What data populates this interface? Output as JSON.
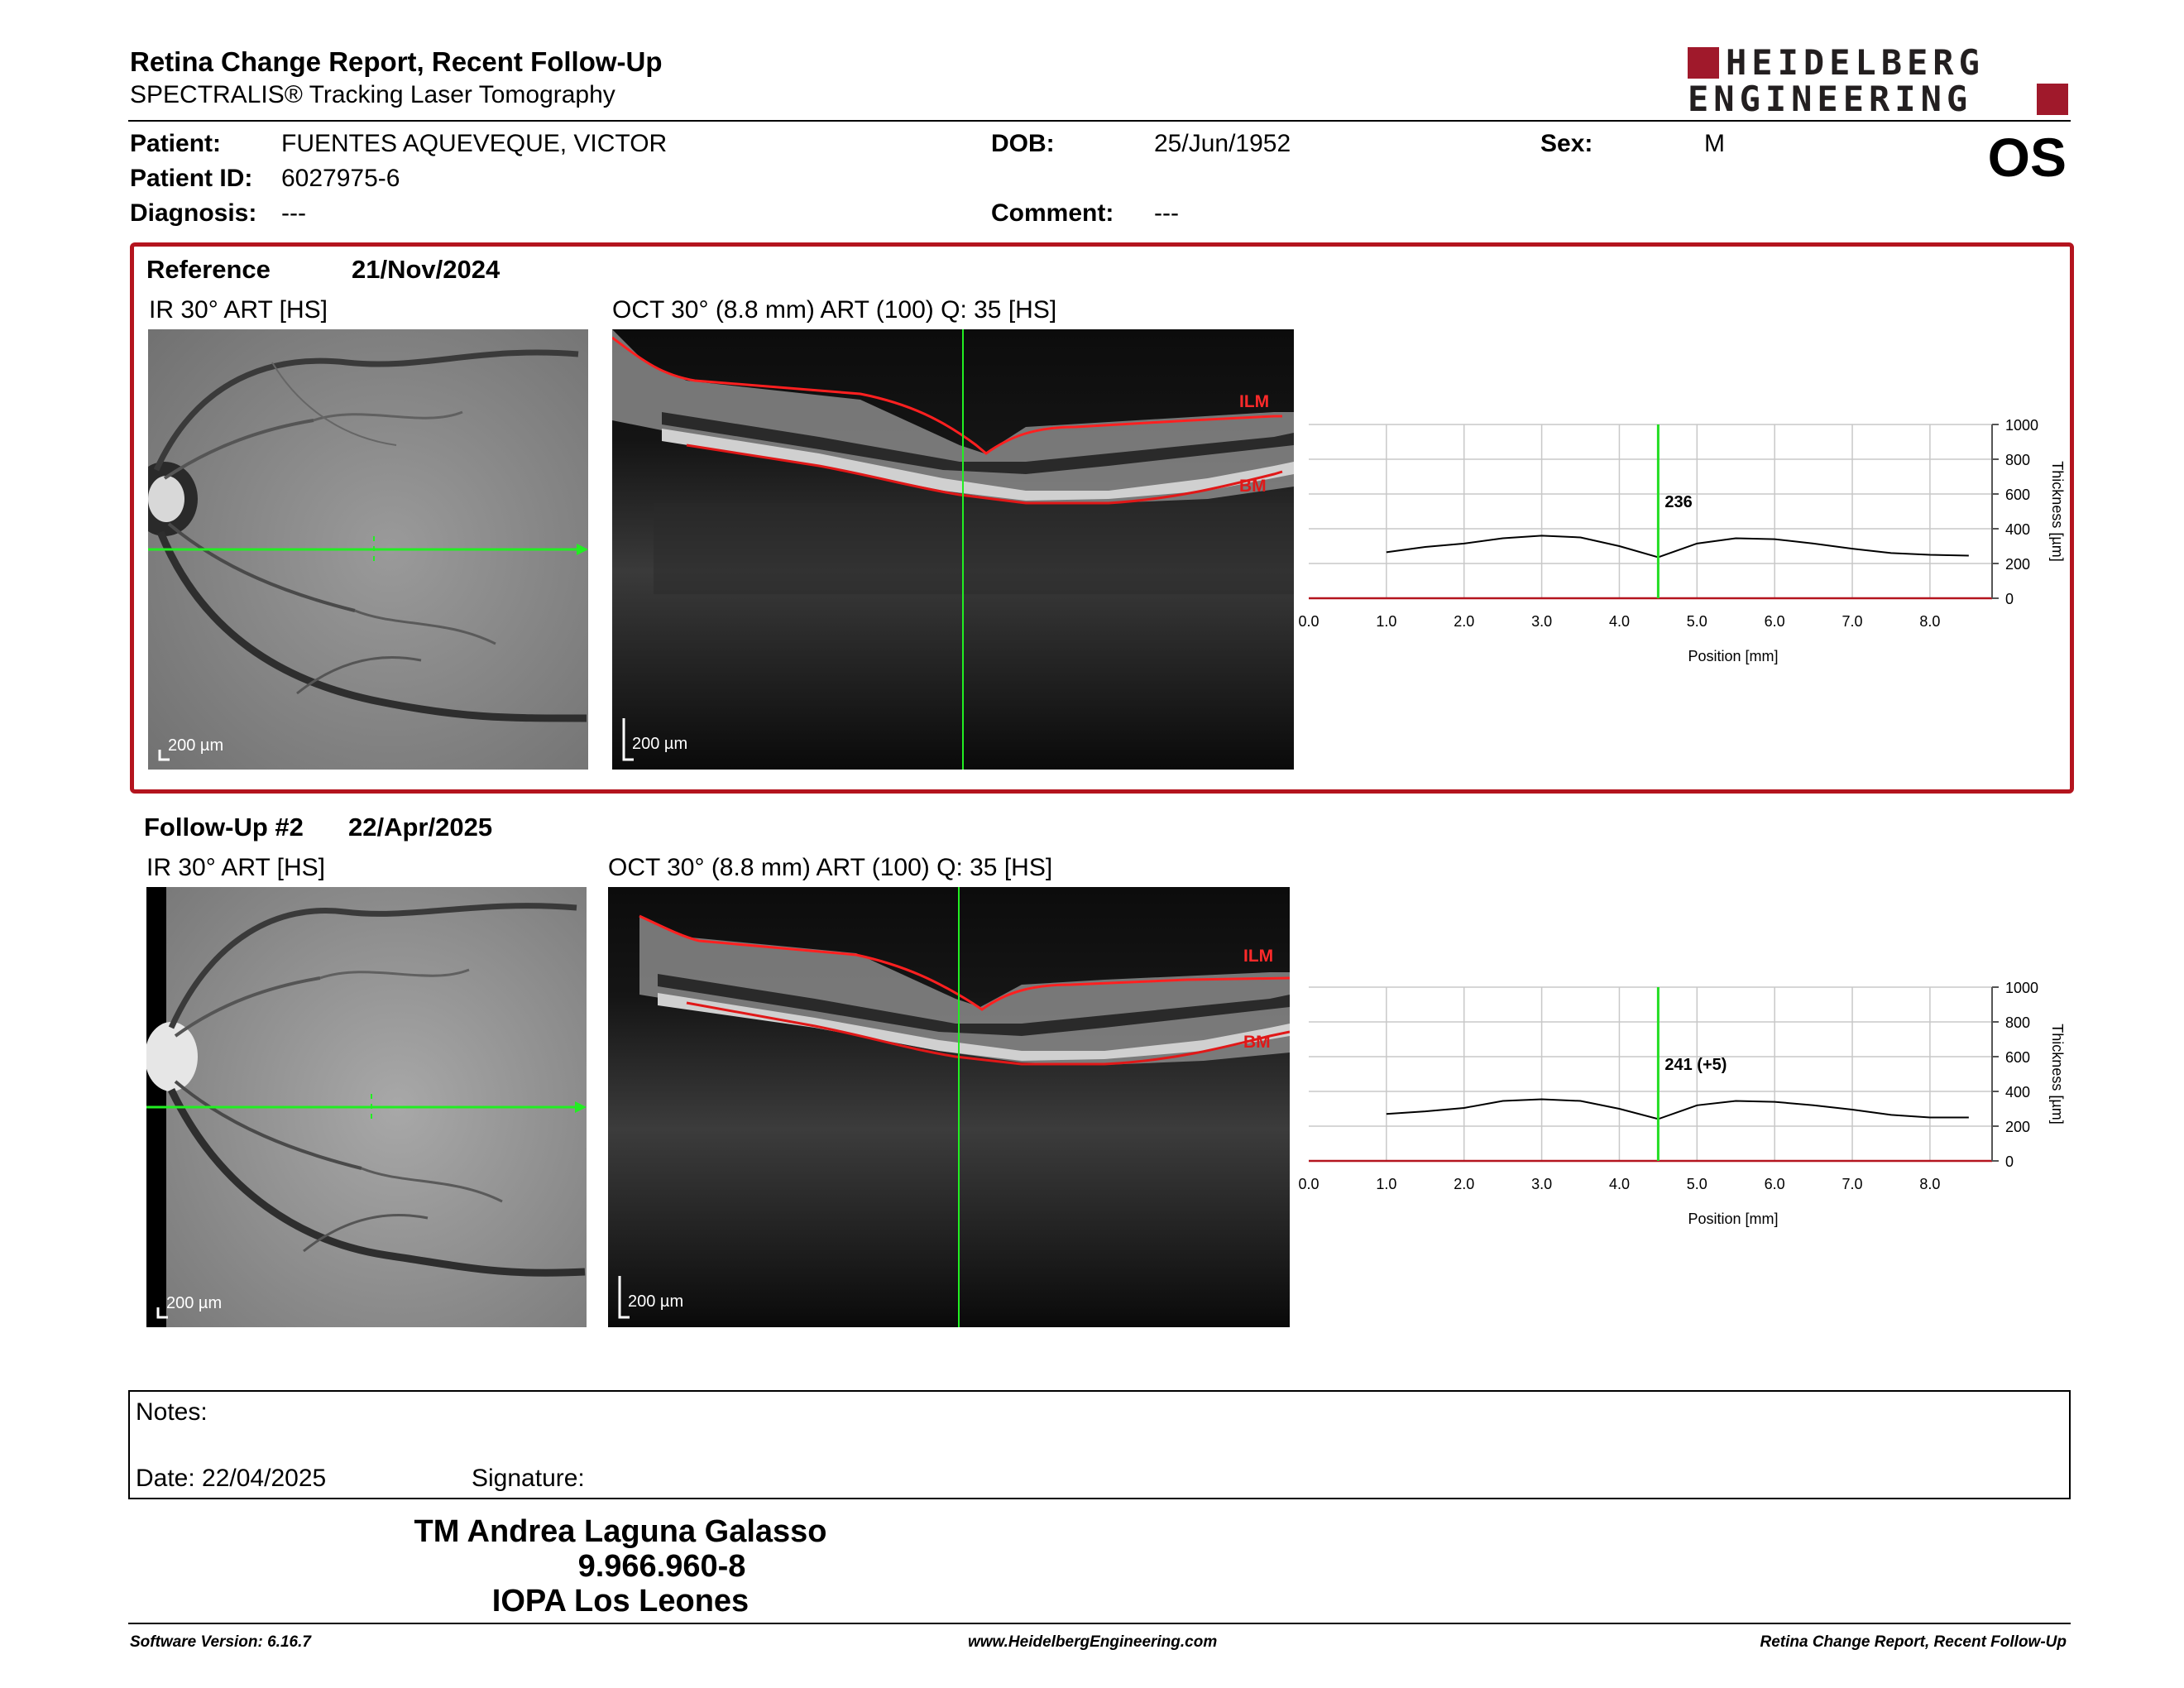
{
  "header": {
    "title": "Retina Change Report, Recent Follow-Up",
    "subtitle": "SPECTRALIS® Tracking Laser Tomography",
    "logo_line1": "HEIDELBERG",
    "logo_line2": "ENGINEERING",
    "brand_color": "#a0192b",
    "eye": "OS"
  },
  "patient": {
    "patient_label": "Patient:",
    "patient_value": "FUENTES AQUEVEQUE, VICTOR",
    "id_label": "Patient ID:",
    "id_value": "6027975-6",
    "diagnosis_label": "Diagnosis:",
    "diagnosis_value": "---",
    "dob_label": "DOB:",
    "dob_value": "25/Jun/1952",
    "comment_label": "Comment:",
    "comment_value": "---",
    "sex_label": "Sex:",
    "sex_value": "M"
  },
  "exams": [
    {
      "name": "Reference",
      "date": "21/Nov/2024",
      "ir_label": "IR 30° ART [HS]",
      "oct_label": "OCT 30° (8.8 mm) ART (100) Q: 35 [HS]",
      "scale": "200 µm",
      "ilm": "ILM",
      "bm": "BM",
      "thickness_label": "236",
      "highlight_color": "#b4141e"
    },
    {
      "name": "Follow-Up #2",
      "date": "22/Apr/2025",
      "ir_label": "IR 30° ART [HS]",
      "oct_label": "OCT 30° (8.8 mm) ART (100) Q: 35 [HS]",
      "scale": "200 µm",
      "ilm": "ILM",
      "bm": "BM",
      "thickness_label": "241 (+5)"
    }
  ],
  "chart_data": [
    {
      "type": "line",
      "xlabel": "Position [mm]",
      "ylabel": "Thickness [µm]",
      "xlim": [
        0,
        8.8
      ],
      "ylim": [
        0,
        1000
      ],
      "x_ticks": [
        "0.0",
        "1.0",
        "2.0",
        "3.0",
        "4.0",
        "5.0",
        "6.0",
        "7.0",
        "8.0"
      ],
      "y_ticks": [
        "0",
        "200",
        "400",
        "600",
        "800",
        "1000"
      ],
      "grid": true,
      "marker_x": 4.5,
      "marker_label": "236",
      "series": [
        {
          "x": [
            1.0,
            1.5,
            2.0,
            2.5,
            3.0,
            3.5,
            4.0,
            4.5,
            5.0,
            5.5,
            6.0,
            6.5,
            7.0,
            7.5,
            8.0,
            8.5
          ],
          "y": [
            265,
            295,
            315,
            345,
            360,
            350,
            300,
            236,
            315,
            345,
            340,
            315,
            285,
            260,
            250,
            245
          ]
        }
      ]
    },
    {
      "type": "line",
      "xlabel": "Position [mm]",
      "ylabel": "Thickness [µm]",
      "xlim": [
        0,
        8.8
      ],
      "ylim": [
        0,
        1000
      ],
      "x_ticks": [
        "0.0",
        "1.0",
        "2.0",
        "3.0",
        "4.0",
        "5.0",
        "6.0",
        "7.0",
        "8.0"
      ],
      "y_ticks": [
        "0",
        "200",
        "400",
        "600",
        "800",
        "1000"
      ],
      "grid": true,
      "marker_x": 4.5,
      "marker_label": "241 (+5)",
      "series": [
        {
          "x": [
            1.0,
            1.5,
            2.0,
            2.5,
            3.0,
            3.5,
            4.0,
            4.5,
            5.0,
            5.5,
            6.0,
            6.5,
            7.0,
            7.5,
            8.0,
            8.5
          ],
          "y": [
            270,
            285,
            305,
            345,
            355,
            345,
            300,
            241,
            320,
            345,
            340,
            320,
            295,
            265,
            250,
            250
          ]
        }
      ]
    }
  ],
  "notes": {
    "notes_label": "Notes:",
    "date_label": "Date: 22/04/2025",
    "signature_label": "Signature:"
  },
  "signatory": {
    "name": "TM Andrea Laguna Galasso",
    "id": "9.966.960-8",
    "institution": "IOPA Los Leones"
  },
  "footer": {
    "software": "Software Version: 6.16.7",
    "website": "www.HeidelbergEngineering.com",
    "report": "Retina Change Report, Recent Follow-Up"
  }
}
